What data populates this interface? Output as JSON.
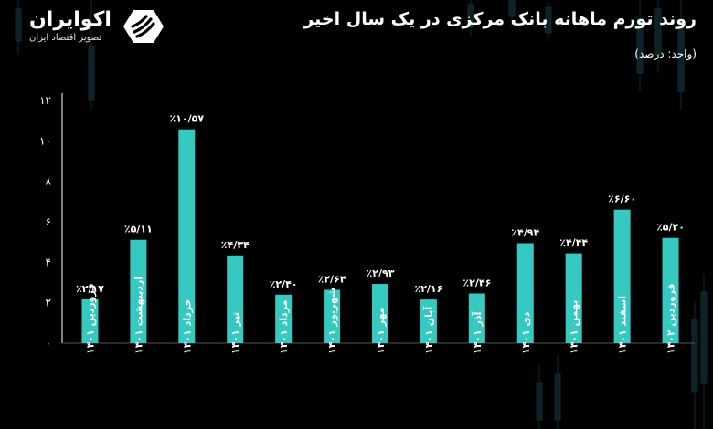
{
  "header": {
    "title": "روند تورم ماهانه بانک مرکزی در یک سال اخیر",
    "unit": "(واحد: درصد)"
  },
  "logo": {
    "name": "اکوایران",
    "subtitle": "تصویر اقتصاد ایران",
    "icon": "ecoiran-logo-icon"
  },
  "colors": {
    "bar": "#35C9C2",
    "background": "#000000",
    "text": "#ffffff"
  },
  "chart_data": {
    "type": "bar",
    "title": "روند تورم ماهانه بانک مرکزی در یک سال اخیر",
    "ylabel": "",
    "xlabel": "",
    "ylim": [
      0,
      12
    ],
    "yticks": [
      0,
      2,
      4,
      6,
      8,
      10,
      12
    ],
    "ytick_labels": [
      "۰",
      "۲",
      "۴",
      "۶",
      "۸",
      "۱۰",
      "۱۲"
    ],
    "grid": false,
    "categories": [
      "فروردین ۱۴۰۱",
      "اردیبهشت ۱۴۰۱",
      "خرداد ۱۴۰۱",
      "تیر ۱۴۰۱",
      "مرداد ۱۴۰۱",
      "شهریور ۱۴۰۱",
      "مهر ۱۴۰۱",
      "آبان ۱۴۰۱",
      "آذر ۱۴۰۱",
      "دی ۱۴۰۱",
      "بهمن ۱۴۰۱",
      "اسفند ۱۴۰۱",
      "فروردین ۱۴۰۲"
    ],
    "values": [
      2.17,
      5.11,
      10.57,
      4.34,
      2.4,
      2.64,
      2.93,
      2.16,
      2.46,
      4.94,
      4.44,
      6.6,
      5.2
    ],
    "value_labels": [
      "٪۲/۱۷",
      "٪۵/۱۱",
      "٪۱۰/۵۷",
      "٪۴/۳۴",
      "٪۲/۴۰",
      "٪۲/۶۴",
      "٪۲/۹۳",
      "٪۲/۱۶",
      "٪۲/۴۶",
      "٪۴/۹۴",
      "٪۴/۴۴",
      "٪۶/۶۰",
      "٪۵/۲۰"
    ]
  }
}
